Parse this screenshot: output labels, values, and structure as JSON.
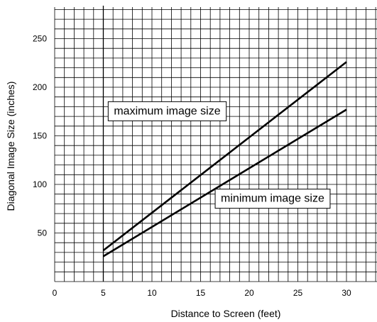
{
  "chart_data": {
    "type": "line",
    "xlabel": "Distance to Screen (feet)",
    "ylabel": "Diagonal Image Size (inches)",
    "xlim": [
      0,
      33
    ],
    "ylim": [
      0,
      290
    ],
    "x_ticks": [
      0,
      5,
      10,
      15,
      20,
      25,
      30
    ],
    "y_ticks": [
      50,
      100,
      150,
      200,
      250
    ],
    "grid": true,
    "grid_step_x": 1,
    "grid_step_y": 10,
    "series": [
      {
        "x": [
          5,
          30
        ],
        "values": [
          32,
          226
        ]
      },
      {
        "x": [
          5,
          30
        ],
        "values": [
          26,
          177
        ]
      }
    ],
    "annotations": [
      {
        "text": "maximum image size",
        "x": 5.5,
        "y": 172
      },
      {
        "text": "minimum image size",
        "x": 16.5,
        "y": 82
      }
    ],
    "color": "#000000"
  }
}
